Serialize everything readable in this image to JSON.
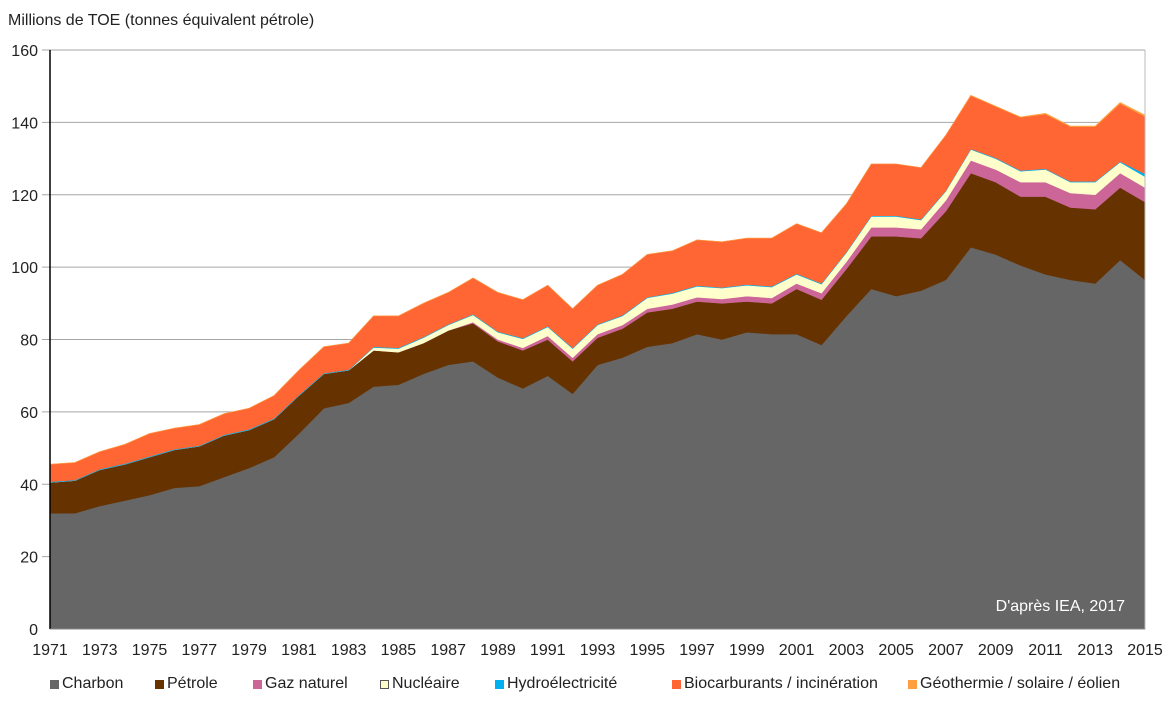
{
  "chart_data": {
    "type": "area",
    "stacked": true,
    "ylabel": "Millions de TOE (tonnes équivalent pétrole)",
    "xlabel": "",
    "ylim": [
      0,
      160
    ],
    "yticks": [
      0,
      20,
      40,
      60,
      80,
      100,
      120,
      140,
      160
    ],
    "grid": true,
    "annotation": "D'après IEA, 2017",
    "legend_position": "bottom",
    "x": [
      1971,
      1972,
      1973,
      1974,
      1975,
      1976,
      1977,
      1978,
      1979,
      1980,
      1981,
      1982,
      1983,
      1984,
      1985,
      1986,
      1987,
      1988,
      1989,
      1990,
      1991,
      1992,
      1993,
      1994,
      1995,
      1996,
      1997,
      1998,
      1999,
      2000,
      2001,
      2002,
      2003,
      2004,
      2005,
      2006,
      2007,
      2008,
      2009,
      2010,
      2011,
      2012,
      2013,
      2014,
      2015
    ],
    "xtick_labels": [
      "1971",
      "1973",
      "1975",
      "1977",
      "1979",
      "1981",
      "1983",
      "1985",
      "1987",
      "1989",
      "1991",
      "1993",
      "1995",
      "1997",
      "1999",
      "2001",
      "2003",
      "2005",
      "2007",
      "2009",
      "2011",
      "2013",
      "2015"
    ],
    "series": [
      {
        "name": "Charbon",
        "color": "#666666",
        "values": [
          32,
          32,
          34,
          35.5,
          37,
          39,
          39.5,
          42,
          44.5,
          47.5,
          54,
          61,
          62.5,
          67,
          67.5,
          70.5,
          73,
          74,
          69.5,
          66.5,
          70,
          65,
          73,
          75,
          78,
          79,
          81.5,
          80,
          82,
          81.5,
          81.5,
          78.5,
          86.5,
          94,
          92,
          93.5,
          96.5,
          105.5,
          103.5,
          100.5,
          98,
          96.5,
          95.5,
          102,
          96.5
        ]
      },
      {
        "name": "Pétrole",
        "color": "#663300",
        "values": [
          8.5,
          9,
          10,
          10,
          10.5,
          10.5,
          11,
          11.5,
          10.5,
          10.5,
          10.5,
          9.5,
          9,
          10,
          9,
          8.5,
          9.5,
          10.5,
          10,
          10.5,
          10,
          9,
          7.5,
          8,
          9.5,
          9.5,
          9,
          10,
          8.5,
          8.5,
          12.5,
          12.5,
          13,
          14.5,
          16.5,
          14.5,
          19,
          20.5,
          20,
          19,
          21.5,
          20,
          20.5,
          20,
          21.5
        ]
      },
      {
        "name": "Gaz naturel",
        "color": "#cc6699",
        "values": [
          0,
          0,
          0,
          0,
          0,
          0,
          0,
          0,
          0,
          0,
          0,
          0,
          0,
          0,
          0,
          0,
          0,
          0.3,
          0.5,
          0.7,
          1,
          1,
          1,
          1,
          1,
          1.2,
          1.2,
          1.2,
          1.5,
          1.5,
          1.5,
          1.8,
          2,
          2.5,
          2.5,
          2.5,
          3,
          3.5,
          3.5,
          4,
          4,
          4,
          4,
          4,
          4
        ]
      },
      {
        "name": "Nucléaire",
        "color": "#ffffcc",
        "values": [
          0,
          0,
          0,
          0,
          0,
          0,
          0,
          0,
          0,
          0,
          0,
          0,
          0,
          0.8,
          1,
          1.5,
          1.5,
          2,
          2,
          2.5,
          2.5,
          2.5,
          2.5,
          2.5,
          3,
          3,
          3,
          3,
          3,
          3,
          2.5,
          2.5,
          2.5,
          3,
          3,
          2.5,
          2.5,
          3,
          3,
          3,
          3.5,
          3,
          3.5,
          3,
          3
        ]
      },
      {
        "name": "Hydroélectricité",
        "color": "#00b0f0",
        "values": [
          0.2,
          0.2,
          0.2,
          0.2,
          0.2,
          0.2,
          0.2,
          0.2,
          0.2,
          0.2,
          0.2,
          0.2,
          0.2,
          0.2,
          0.2,
          0.2,
          0.2,
          0.2,
          0.2,
          0.2,
          0.2,
          0.2,
          0.2,
          0.2,
          0.2,
          0.2,
          0.2,
          0.2,
          0.2,
          0.2,
          0.2,
          0.2,
          0.2,
          0.2,
          0.2,
          0.2,
          0.2,
          0.2,
          0.2,
          0.2,
          0.2,
          0.2,
          0.2,
          0.2,
          0.8
        ]
      },
      {
        "name": "Biocarburants / incinération",
        "color": "#ff6633",
        "values": [
          4.8,
          4.8,
          4.8,
          5.3,
          6.3,
          5.8,
          5.8,
          5.8,
          5.8,
          6.3,
          6.8,
          7.3,
          7.3,
          8.5,
          8.8,
          9.3,
          8.8,
          10,
          10.8,
          10.6,
          11.3,
          10.8,
          10.8,
          11.3,
          11.8,
          11.6,
          12.6,
          12.6,
          12.8,
          13.3,
          13.8,
          14,
          13.3,
          14.3,
          14.3,
          14.3,
          15.3,
          14.7,
          14.2,
          14.7,
          15.1,
          15.1,
          15.1,
          16,
          15.8
        ]
      },
      {
        "name": "Géothermie / solaire / éolien",
        "color": "#ffa040",
        "values": [
          0,
          0,
          0,
          0,
          0,
          0,
          0,
          0,
          0,
          0,
          0,
          0,
          0,
          0,
          0,
          0,
          0,
          0,
          0,
          0,
          0,
          0,
          0,
          0,
          0,
          0,
          0,
          0,
          0,
          0,
          0,
          0,
          0,
          0,
          0,
          0,
          0,
          0.1,
          0.1,
          0.1,
          0.2,
          0.2,
          0.2,
          0.3,
          0.4
        ]
      }
    ]
  }
}
